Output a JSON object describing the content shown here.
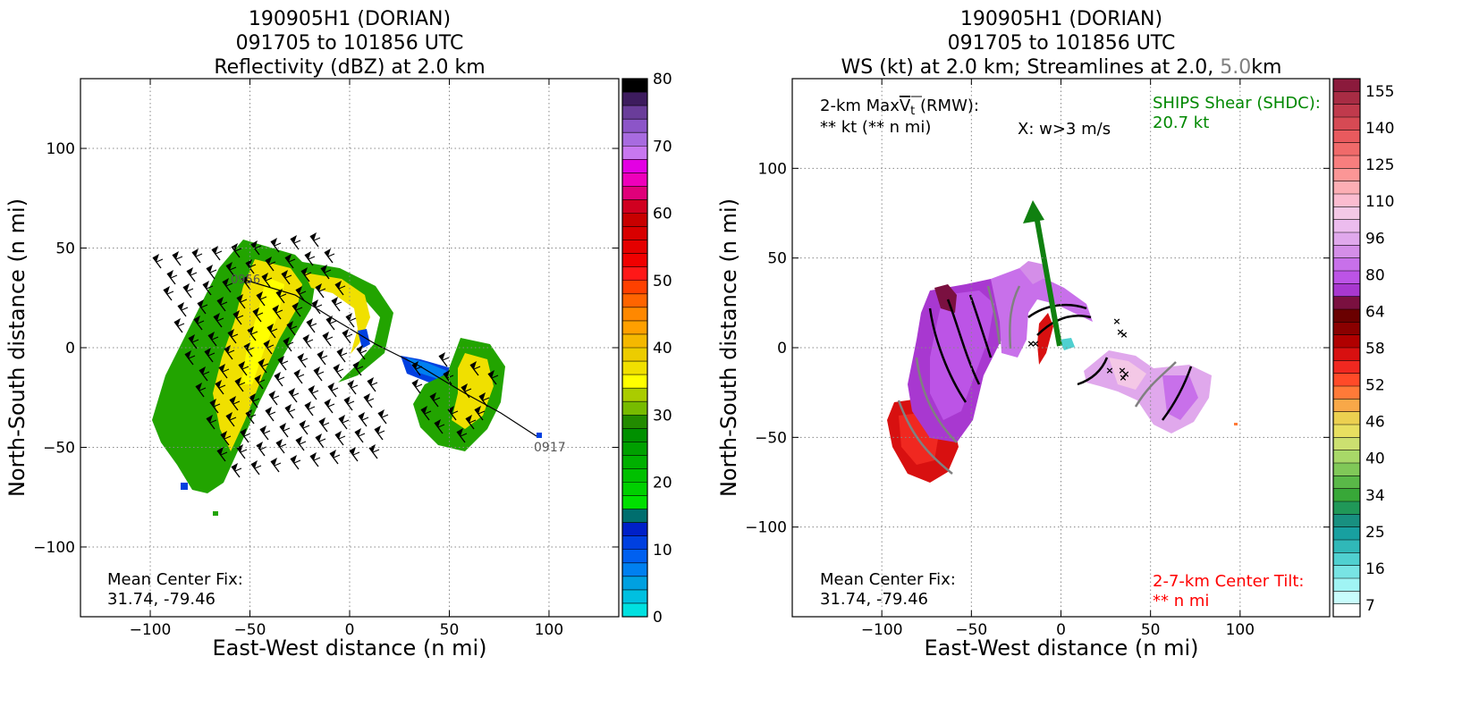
{
  "chart_data": [
    {
      "type": "heatmap",
      "title_lines": [
        "190905H1 (DORIAN)",
        "091705 to 101856 UTC",
        "Reflectivity (dBZ) at 2.0 km"
      ],
      "xlabel": "East-West distance (n mi)",
      "ylabel": "North-South distance (n mi)",
      "xlim": [
        -135,
        135
      ],
      "ylim": [
        -135,
        135
      ],
      "xticks": [
        -100,
        -50,
        0,
        50,
        100
      ],
      "yticks": [
        -100,
        -50,
        0,
        50,
        100
      ],
      "x_tick_labels": [
        "−100",
        "−50",
        "0",
        "50",
        "100"
      ],
      "y_tick_labels": [
        "−100",
        "−50",
        "0",
        "50",
        "100"
      ],
      "grid": true,
      "colorbar": {
        "label_values": [
          "80",
          "70",
          "60",
          "50",
          "40",
          "30",
          "20",
          "10",
          "0"
        ],
        "colors": [
          "#000000",
          "#3d1c5e",
          "#6a3d9a",
          "#8c55c8",
          "#a86be0",
          "#c877f0",
          "#e300e3",
          "#ee00bb",
          "#e0007a",
          "#d00020",
          "#c80000",
          "#d80000",
          "#e40000",
          "#f00000",
          "#ff1818",
          "#ff4000",
          "#ff6400",
          "#ff8800",
          "#ffa000",
          "#f5b800",
          "#eccc00",
          "#f0e000",
          "#ffff00",
          "#aacc00",
          "#77bb00",
          "#228b00",
          "#009000",
          "#00a000",
          "#00b000",
          "#00c000",
          "#00d000",
          "#00e000",
          "#006e6e",
          "#0020c8",
          "#0040e0",
          "#0060f0",
          "#0080f0",
          "#00a0e0",
          "#00c0e0",
          "#00e0e0"
        ]
      },
      "flight_track": {
        "start_label": "0956",
        "end_label": "0917"
      },
      "annotations": {
        "center_fix_line1": "Mean Center Fix:",
        "center_fix_line2": "31.74, -79.46"
      }
    },
    {
      "type": "heatmap",
      "title_line1": "190905H1 (DORIAN)",
      "title_line2": "091705 to 101856 UTC",
      "title_line3_a": "WS (kt) at 2.0 km; Streamlines at 2.0, ",
      "title_line3_b": "5.0",
      "title_line3_c": "km",
      "xlabel": "East-West distance (n mi)",
      "ylabel": "North-South distance (n mi)",
      "xlim": [
        -150,
        150
      ],
      "ylim": [
        -150,
        150
      ],
      "xticks": [
        -100,
        -50,
        0,
        50,
        100
      ],
      "yticks": [
        -100,
        -50,
        0,
        50,
        100
      ],
      "x_tick_labels": [
        "−100",
        "−50",
        "0",
        "50",
        "100"
      ],
      "y_tick_labels": [
        "−100",
        "−50",
        "0",
        "50",
        "100"
      ],
      "grid": true,
      "colorbar": {
        "label_values": [
          "155",
          "140",
          "125",
          "110",
          "96",
          "80",
          "64",
          "58",
          "52",
          "46",
          "40",
          "34",
          "25",
          "16",
          "7"
        ],
        "colors": [
          "#8b1a3c",
          "#a82c44",
          "#c03a4c",
          "#d64a54",
          "#e85a5e",
          "#f06a6a",
          "#f87e7e",
          "#fb9696",
          "#fcaeb4",
          "#fbbcd0",
          "#f4c8e6",
          "#ecbcee",
          "#e0a8ec",
          "#d48ee8",
          "#c870ea",
          "#bc54e6",
          "#a838d0",
          "#7a1040",
          "#6a0000",
          "#8a0000",
          "#b00000",
          "#d81010",
          "#f02820",
          "#ff4a28",
          "#ff7a38",
          "#f8a848",
          "#ecd050",
          "#e8e060",
          "#cce070",
          "#a8d868",
          "#80c858",
          "#5ab848",
          "#38a838",
          "#209858",
          "#189080",
          "#18a0a0",
          "#30b8b8",
          "#50d0d0",
          "#78e4e4",
          "#a0f4f4",
          "#c8fcfc",
          "#ffffff"
        ]
      },
      "shear_vector_heading": "NNW",
      "annotations": {
        "max_vt_line1_a": "2-km Max",
        "max_vt_line1_sym": "V",
        "max_vt_line1_sub": "t",
        "max_vt_line1_b": " (RMW):",
        "max_vt_line2": "** kt (** n mi)",
        "w_marker": "X: w>3 m/s",
        "ships_line1": "SHIPS Shear (SHDC):",
        "ships_line2": "20.7 kt",
        "center_fix_line1": "Mean Center Fix:",
        "center_fix_line2": "31.74, -79.46",
        "tilt_line1": "2-7-km Center Tilt:",
        "tilt_line2": "** n mi"
      }
    }
  ],
  "colors": {
    "ships_text": "#008800",
    "tilt_text": "#ff0000",
    "title_5km": "#808080",
    "shear_arrow": "#108010"
  }
}
